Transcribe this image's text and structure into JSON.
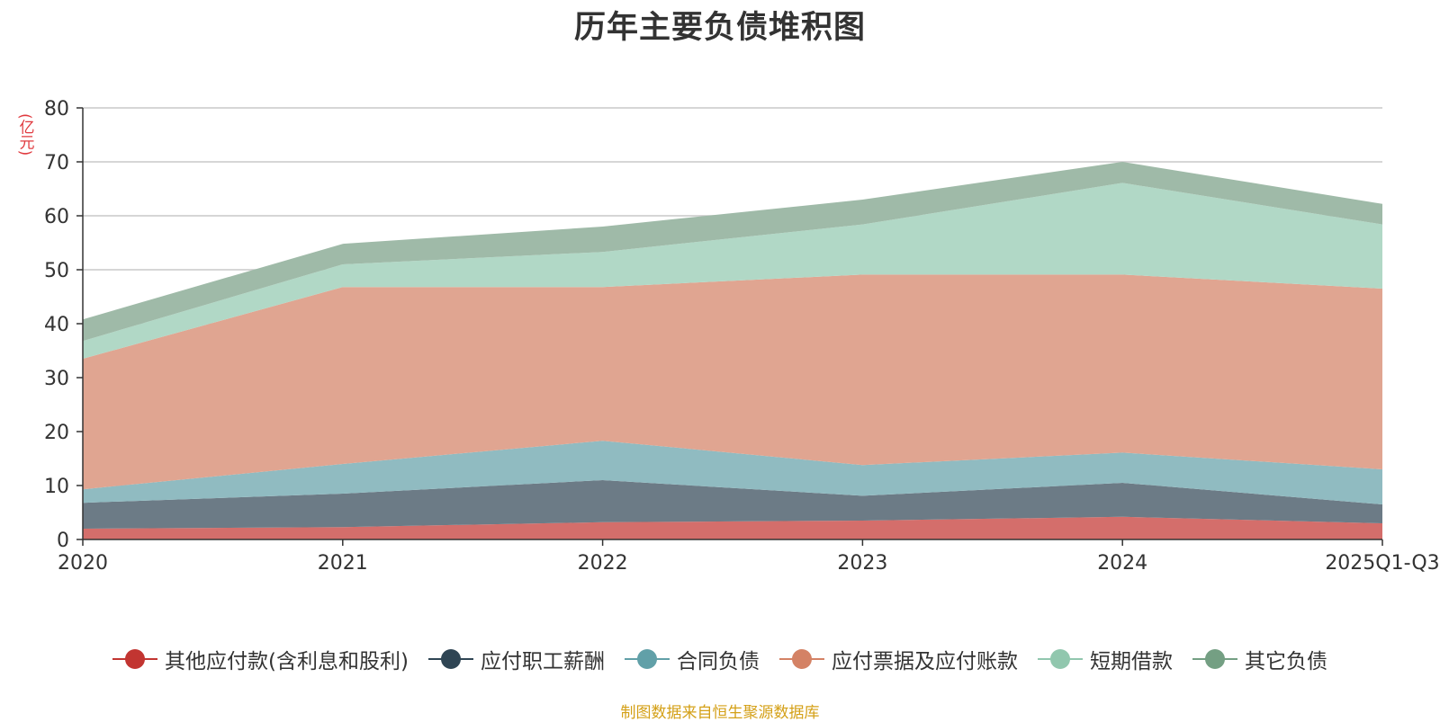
{
  "chart_data": {
    "type": "area",
    "stacked": true,
    "title": "历年主要负债堆积图",
    "ylabel": "(亿元)",
    "xlabel": "",
    "categories": [
      "2020",
      "2021",
      "2022",
      "2023",
      "2024",
      "2025Q1-Q3"
    ],
    "ylim": [
      0,
      80
    ],
    "yticks": [
      0,
      10,
      20,
      30,
      40,
      50,
      60,
      70,
      80
    ],
    "grid": true,
    "legend_position": "bottom",
    "series": [
      {
        "name": "其他应付款(含利息和股利)",
        "values": [
          2.0,
          2.3,
          3.2,
          3.5,
          4.2,
          3.0
        ],
        "color": "#c23531",
        "fill": "#d46e6b"
      },
      {
        "name": "应付职工薪酬",
        "values": [
          4.8,
          6.2,
          7.8,
          4.6,
          6.3,
          3.5
        ],
        "color": "#2f4554",
        "fill": "#6c7b86"
      },
      {
        "name": "合同负债",
        "values": [
          2.5,
          5.5,
          7.3,
          5.7,
          5.6,
          6.5
        ],
        "color": "#61a0a8",
        "fill": "#90bbc1"
      },
      {
        "name": "应付票据及应付账款",
        "values": [
          24.2,
          32.8,
          28.5,
          35.3,
          33.0,
          33.5
        ],
        "color": "#d48265",
        "fill": "#e0a591"
      },
      {
        "name": "短期借款",
        "values": [
          3.3,
          4.2,
          6.5,
          9.3,
          17.0,
          11.9
        ],
        "color": "#91c7ae",
        "fill": "#b1d8c6"
      },
      {
        "name": "其它负债",
        "values": [
          4.0,
          3.8,
          4.7,
          4.6,
          3.9,
          3.8
        ],
        "color": "#749f83",
        "fill": "#9fbaa8"
      }
    ]
  },
  "source_note": "制图数据来自恒生聚源数据库"
}
